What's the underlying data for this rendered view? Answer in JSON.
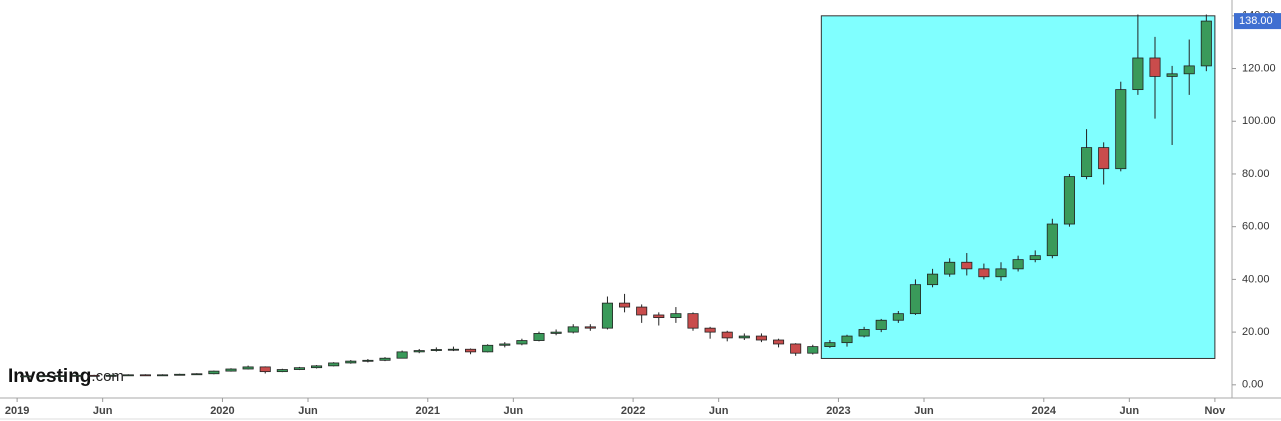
{
  "chart_data": {
    "type": "candlestick",
    "x": [
      "2019-01",
      "2019-02",
      "2019-03",
      "2019-04",
      "2019-05",
      "2019-06",
      "2019-07",
      "2019-08",
      "2019-09",
      "2019-10",
      "2019-11",
      "2019-12",
      "2020-01",
      "2020-02",
      "2020-03",
      "2020-04",
      "2020-05",
      "2020-06",
      "2020-07",
      "2020-08",
      "2020-09",
      "2020-10",
      "2020-11",
      "2020-12",
      "2021-01",
      "2021-02",
      "2021-03",
      "2021-04",
      "2021-05",
      "2021-06",
      "2021-07",
      "2021-08",
      "2021-09",
      "2021-10",
      "2021-11",
      "2021-12",
      "2022-01",
      "2022-02",
      "2022-03",
      "2022-04",
      "2022-05",
      "2022-06",
      "2022-07",
      "2022-08",
      "2022-09",
      "2022-10",
      "2022-11",
      "2022-12",
      "2023-01",
      "2023-02",
      "2023-03",
      "2023-04",
      "2023-05",
      "2023-06",
      "2023-07",
      "2023-08",
      "2023-09",
      "2023-10",
      "2023-11",
      "2023-12",
      "2024-01",
      "2024-02",
      "2024-03",
      "2024-04",
      "2024-05",
      "2024-06",
      "2024-07",
      "2024-08",
      "2024-09",
      "2024-10"
    ],
    "open": [
      3.3,
      3.4,
      3.5,
      3.5,
      3.6,
      3.4,
      3.6,
      3.8,
      3.7,
      3.8,
      4.0,
      4.2,
      5.2,
      6.0,
      6.8,
      5.0,
      5.8,
      6.5,
      7.2,
      8.3,
      9.0,
      9.3,
      10.1,
      12.5,
      13.0,
      13.4,
      13.5,
      12.5,
      15.0,
      15.5,
      16.8,
      19.5,
      20.0,
      22.0,
      21.5,
      31.0,
      29.5,
      26.5,
      25.5,
      27.0,
      21.5,
      20.0,
      17.8,
      18.5,
      17.0,
      15.5,
      12.0,
      14.5,
      16.0,
      18.5,
      21.0,
      24.5,
      27.0,
      38.0,
      42.0,
      46.5,
      44.0,
      41.0,
      44.0,
      47.5,
      49.0,
      61.0,
      79.0,
      90.0,
      82.0,
      112.0,
      124.0,
      117.0,
      118.0,
      121.0
    ],
    "high": [
      3.6,
      3.7,
      3.7,
      3.8,
      3.8,
      3.8,
      4.0,
      4.0,
      4.0,
      4.2,
      4.4,
      5.4,
      6.3,
      7.3,
      7.0,
      6.1,
      6.8,
      7.5,
      8.6,
      9.4,
      9.8,
      10.5,
      13.0,
      13.6,
      14.2,
      14.5,
      13.8,
      15.4,
      16.2,
      17.5,
      20.2,
      21.0,
      23.0,
      23.0,
      33.5,
      34.5,
      30.5,
      27.5,
      29.5,
      27.5,
      22.0,
      20.5,
      19.5,
      19.5,
      17.5,
      15.8,
      15.2,
      17.0,
      19.0,
      22.0,
      25.0,
      28.0,
      40.0,
      44.0,
      48.0,
      50.0,
      46.0,
      46.5,
      49.0,
      51.0,
      63.0,
      80.0,
      97.0,
      92.0,
      115.0,
      140.5,
      132.0,
      121.0,
      131.0,
      140.5
    ],
    "low": [
      3.1,
      3.2,
      3.3,
      3.3,
      3.2,
      3.2,
      3.4,
      3.5,
      3.5,
      3.6,
      3.8,
      4.0,
      5.0,
      5.8,
      4.3,
      4.8,
      5.6,
      6.2,
      7.0,
      8.0,
      8.5,
      9.0,
      10.0,
      12.0,
      12.6,
      12.8,
      11.6,
      12.3,
      14.2,
      15.0,
      16.5,
      18.8,
      19.5,
      20.5,
      21.0,
      27.5,
      23.5,
      22.5,
      23.5,
      20.5,
      17.5,
      16.5,
      17.0,
      16.2,
      14.2,
      11.0,
      11.5,
      14.0,
      14.5,
      18.0,
      20.0,
      23.5,
      26.5,
      37.0,
      41.0,
      41.5,
      40.0,
      39.5,
      43.0,
      46.5,
      48.0,
      60.0,
      78.0,
      76.0,
      81.0,
      110.0,
      101.0,
      91.0,
      110.0,
      119.0
    ],
    "close": [
      3.4,
      3.5,
      3.5,
      3.6,
      3.4,
      3.6,
      3.8,
      3.7,
      3.8,
      4.0,
      4.2,
      5.2,
      6.0,
      6.8,
      5.0,
      5.8,
      6.5,
      7.2,
      8.3,
      9.0,
      9.3,
      10.1,
      12.5,
      13.0,
      13.4,
      13.5,
      12.5,
      15.0,
      15.5,
      16.8,
      19.5,
      20.0,
      22.0,
      21.5,
      31.0,
      29.5,
      26.5,
      25.5,
      27.0,
      21.5,
      20.0,
      17.8,
      18.5,
      17.0,
      15.5,
      12.0,
      14.5,
      16.0,
      18.5,
      21.0,
      24.5,
      27.0,
      38.0,
      42.0,
      46.5,
      44.0,
      41.0,
      44.0,
      47.5,
      49.0,
      61.0,
      79.0,
      90.0,
      82.0,
      112.0,
      124.0,
      117.0,
      118.0,
      121.0,
      138.0
    ],
    "up_color": "#3a9a5a",
    "down_color": "#c94c4c",
    "xlim": [
      "2018-12",
      "2024-12"
    ],
    "xticks": [
      {
        "value": "2019-01",
        "label": "2019"
      },
      {
        "value": "2019-06",
        "label": "Jun"
      },
      {
        "value": "2020-01",
        "label": "2020"
      },
      {
        "value": "2020-06",
        "label": "Jun"
      },
      {
        "value": "2021-01",
        "label": "2021"
      },
      {
        "value": "2021-06",
        "label": "Jun"
      },
      {
        "value": "2022-01",
        "label": "2022"
      },
      {
        "value": "2022-06",
        "label": "Jun"
      },
      {
        "value": "2023-01",
        "label": "2023"
      },
      {
        "value": "2023-06",
        "label": "Jun"
      },
      {
        "value": "2024-01",
        "label": "2024"
      },
      {
        "value": "2024-06",
        "label": "Jun"
      },
      {
        "value": "2024-11",
        "label": "Nov"
      }
    ],
    "ylim": [
      -5,
      146
    ],
    "yticks": [
      {
        "value": 0,
        "label": "0.00"
      },
      {
        "value": 20,
        "label": "20.00"
      },
      {
        "value": 40,
        "label": "40.00"
      },
      {
        "value": 60,
        "label": "60.00"
      },
      {
        "value": 80,
        "label": "80.00"
      },
      {
        "value": 100,
        "label": "100.00"
      },
      {
        "value": 120,
        "label": "120.00"
      },
      {
        "value": 140,
        "label": "140.00"
      }
    ],
    "last_price": {
      "value": 138,
      "label": "138.00",
      "color": "#3f6fd1"
    },
    "highlight": {
      "x0": "2022-12",
      "x1": "2024-11",
      "y0": 10,
      "y1": 140,
      "color": "#80ffff"
    },
    "watermark": "Investing",
    "watermark_suffix": ".com"
  }
}
